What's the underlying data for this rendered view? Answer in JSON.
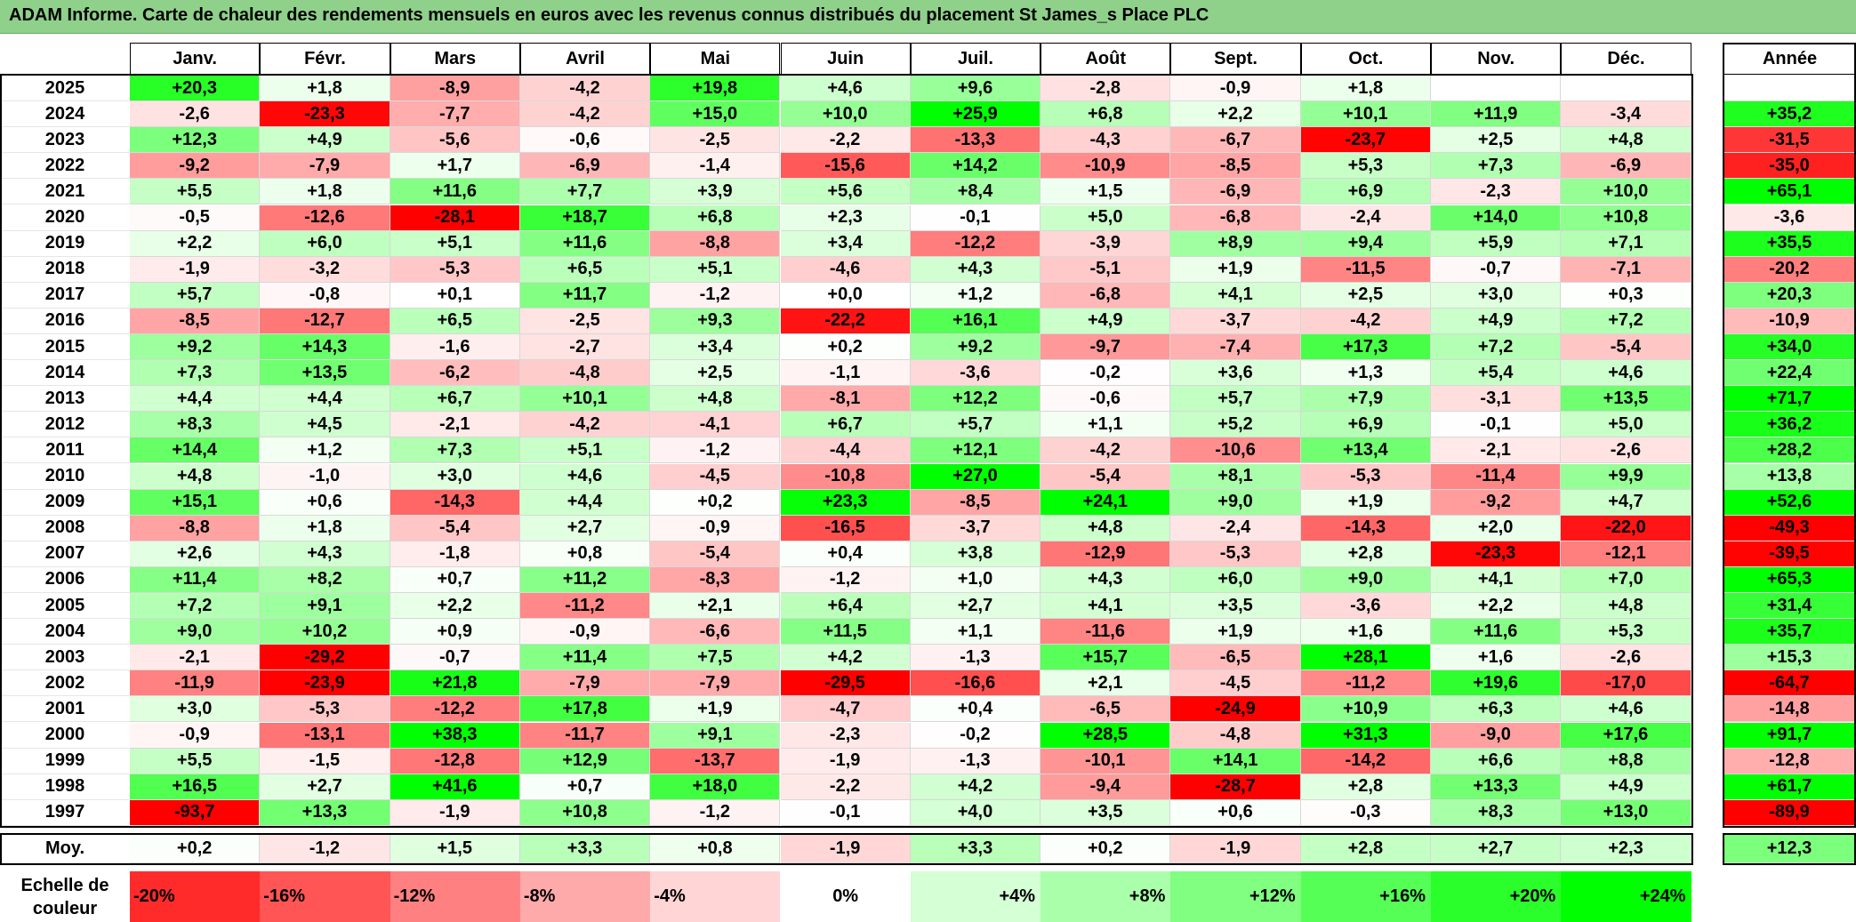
{
  "title": "ADAM Informe. Carte de chaleur des rendements mensuels en euros avec les revenus connus distribués du placement St James_s Place PLC",
  "chart_data": {
    "type": "heatmap",
    "columns": [
      "Janv.",
      "Févr.",
      "Mars",
      "Avril",
      "Mai",
      "Juin",
      "Juil.",
      "Août",
      "Sept.",
      "Oct.",
      "Nov.",
      "Déc."
    ],
    "year_column_label": "Année",
    "rows": [
      {
        "year": "2025",
        "months": [
          "+20,3",
          "+1,8",
          "-8,9",
          "-4,2",
          "+19,8",
          "+4,6",
          "+9,6",
          "-2,8",
          "-0,9",
          "+1,8",
          "",
          ""
        ],
        "annual": ""
      },
      {
        "year": "2024",
        "months": [
          "-2,6",
          "-23,3",
          "-7,7",
          "-4,2",
          "+15,0",
          "+10,0",
          "+25,9",
          "+6,8",
          "+2,2",
          "+10,1",
          "+11,9",
          "-3,4"
        ],
        "annual": "+35,2"
      },
      {
        "year": "2023",
        "months": [
          "+12,3",
          "+4,9",
          "-5,6",
          "-0,6",
          "-2,5",
          "-2,2",
          "-13,3",
          "-4,3",
          "-6,7",
          "-23,7",
          "+2,5",
          "+4,8"
        ],
        "annual": "-31,5"
      },
      {
        "year": "2022",
        "months": [
          "-9,2",
          "-7,9",
          "+1,7",
          "-6,9",
          "-1,4",
          "-15,6",
          "+14,2",
          "-10,9",
          "-8,5",
          "+5,3",
          "+7,3",
          "-6,9"
        ],
        "annual": "-35,0"
      },
      {
        "year": "2021",
        "months": [
          "+5,5",
          "+1,8",
          "+11,6",
          "+7,7",
          "+3,9",
          "+5,6",
          "+8,4",
          "+1,5",
          "-6,9",
          "+6,9",
          "-2,3",
          "+10,0"
        ],
        "annual": "+65,1"
      },
      {
        "year": "2020",
        "months": [
          "-0,5",
          "-12,6",
          "-28,1",
          "+18,7",
          "+6,8",
          "+2,3",
          "-0,1",
          "+5,0",
          "-6,8",
          "-2,4",
          "+14,0",
          "+10,8"
        ],
        "annual": "-3,6"
      },
      {
        "year": "2019",
        "months": [
          "+2,2",
          "+6,0",
          "+5,1",
          "+11,6",
          "-8,8",
          "+3,4",
          "-12,2",
          "-3,9",
          "+8,9",
          "+9,4",
          "+5,9",
          "+7,1"
        ],
        "annual": "+35,5"
      },
      {
        "year": "2018",
        "months": [
          "-1,9",
          "-3,2",
          "-5,3",
          "+6,5",
          "+5,1",
          "-4,6",
          "+4,3",
          "-5,1",
          "+1,9",
          "-11,5",
          "-0,7",
          "-7,1"
        ],
        "annual": "-20,2"
      },
      {
        "year": "2017",
        "months": [
          "+5,7",
          "-0,8",
          "+0,1",
          "+11,7",
          "-1,2",
          "+0,0",
          "+1,2",
          "-6,8",
          "+4,1",
          "+2,5",
          "+3,0",
          "+0,3"
        ],
        "annual": "+20,3"
      },
      {
        "year": "2016",
        "months": [
          "-8,5",
          "-12,7",
          "+6,5",
          "-2,5",
          "+9,3",
          "-22,2",
          "+16,1",
          "+4,9",
          "-3,7",
          "-4,2",
          "+4,9",
          "+7,2"
        ],
        "annual": "-10,9"
      },
      {
        "year": "2015",
        "months": [
          "+9,2",
          "+14,3",
          "-1,6",
          "-2,7",
          "+3,4",
          "+0,2",
          "+9,2",
          "-9,7",
          "-7,4",
          "+17,3",
          "+7,2",
          "-5,4"
        ],
        "annual": "+34,0"
      },
      {
        "year": "2014",
        "months": [
          "+7,3",
          "+13,5",
          "-6,2",
          "-4,8",
          "+2,5",
          "-1,1",
          "-3,6",
          "-0,2",
          "+3,6",
          "+1,3",
          "+5,4",
          "+4,6"
        ],
        "annual": "+22,4"
      },
      {
        "year": "2013",
        "months": [
          "+4,4",
          "+4,4",
          "+6,7",
          "+10,1",
          "+4,8",
          "-8,1",
          "+12,2",
          "-0,6",
          "+5,7",
          "+7,9",
          "-3,1",
          "+13,5"
        ],
        "annual": "+71,7"
      },
      {
        "year": "2012",
        "months": [
          "+8,3",
          "+4,5",
          "-2,1",
          "-4,2",
          "-4,1",
          "+6,7",
          "+5,7",
          "+1,1",
          "+5,2",
          "+6,9",
          "-0,1",
          "+5,0"
        ],
        "annual": "+36,2"
      },
      {
        "year": "2011",
        "months": [
          "+14,4",
          "+1,2",
          "+7,3",
          "+5,1",
          "-1,2",
          "-4,4",
          "+12,1",
          "-4,2",
          "-10,6",
          "+13,4",
          "-2,1",
          "-2,6"
        ],
        "annual": "+28,2"
      },
      {
        "year": "2010",
        "months": [
          "+4,8",
          "-1,0",
          "+3,0",
          "+4,6",
          "-4,5",
          "-10,8",
          "+27,0",
          "-5,4",
          "+8,1",
          "-5,3",
          "-11,4",
          "+9,9"
        ],
        "annual": "+13,8"
      },
      {
        "year": "2009",
        "months": [
          "+15,1",
          "+0,6",
          "-14,3",
          "+4,4",
          "+0,2",
          "+23,3",
          "-8,5",
          "+24,1",
          "+9,0",
          "+1,9",
          "-9,2",
          "+4,7"
        ],
        "annual": "+52,6"
      },
      {
        "year": "2008",
        "months": [
          "-8,8",
          "+1,8",
          "-5,4",
          "+2,7",
          "-0,9",
          "-16,5",
          "-3,7",
          "+4,8",
          "-2,4",
          "-14,3",
          "+2,0",
          "-22,0"
        ],
        "annual": "-49,3"
      },
      {
        "year": "2007",
        "months": [
          "+2,6",
          "+4,3",
          "-1,8",
          "+0,8",
          "-5,4",
          "+0,4",
          "+3,8",
          "-12,9",
          "-5,3",
          "+2,8",
          "-23,3",
          "-12,1"
        ],
        "annual": "-39,5"
      },
      {
        "year": "2006",
        "months": [
          "+11,4",
          "+8,2",
          "+0,7",
          "+11,2",
          "-8,3",
          "-1,2",
          "+1,0",
          "+4,3",
          "+6,0",
          "+9,0",
          "+4,1",
          "+7,0"
        ],
        "annual": "+65,3"
      },
      {
        "year": "2005",
        "months": [
          "+7,2",
          "+9,1",
          "+2,2",
          "-11,2",
          "+2,1",
          "+6,4",
          "+2,7",
          "+4,1",
          "+3,5",
          "-3,6",
          "+2,2",
          "+4,8"
        ],
        "annual": "+31,4"
      },
      {
        "year": "2004",
        "months": [
          "+9,0",
          "+10,2",
          "+0,9",
          "-0,9",
          "-6,6",
          "+11,5",
          "+1,1",
          "-11,6",
          "+1,9",
          "+1,6",
          "+11,6",
          "+5,3"
        ],
        "annual": "+35,7"
      },
      {
        "year": "2003",
        "months": [
          "-2,1",
          "-29,2",
          "-0,7",
          "+11,4",
          "+7,5",
          "+4,2",
          "-1,3",
          "+15,7",
          "-6,5",
          "+28,1",
          "+1,6",
          "-2,6"
        ],
        "annual": "+15,3"
      },
      {
        "year": "2002",
        "months": [
          "-11,9",
          "-23,9",
          "+21,8",
          "-7,9",
          "-7,9",
          "-29,5",
          "-16,6",
          "+2,1",
          "-4,5",
          "-11,2",
          "+19,6",
          "-17,0"
        ],
        "annual": "-64,7"
      },
      {
        "year": "2001",
        "months": [
          "+3,0",
          "-5,3",
          "-12,2",
          "+17,8",
          "+1,9",
          "-4,7",
          "+0,4",
          "-6,5",
          "-24,9",
          "+10,9",
          "+6,3",
          "+4,6"
        ],
        "annual": "-14,8"
      },
      {
        "year": "2000",
        "months": [
          "-0,9",
          "-13,1",
          "+38,3",
          "-11,7",
          "+9,1",
          "-2,3",
          "-0,2",
          "+28,5",
          "-4,8",
          "+31,3",
          "-9,0",
          "+17,6"
        ],
        "annual": "+91,7"
      },
      {
        "year": "1999",
        "months": [
          "+5,5",
          "-1,5",
          "-12,8",
          "+12,9",
          "-13,7",
          "-1,9",
          "-1,3",
          "-10,1",
          "+14,1",
          "-14,2",
          "+6,6",
          "+8,8"
        ],
        "annual": "-12,8"
      },
      {
        "year": "1998",
        "months": [
          "+16,5",
          "+2,7",
          "+41,6",
          "+0,7",
          "+18,0",
          "-2,2",
          "+4,2",
          "-9,4",
          "-28,7",
          "+2,8",
          "+13,3",
          "+4,9"
        ],
        "annual": "+61,7"
      },
      {
        "year": "1997",
        "months": [
          "-93,7",
          "+13,3",
          "-1,9",
          "+10,8",
          "-1,2",
          "-0,1",
          "+4,0",
          "+3,5",
          "+0,6",
          "-0,3",
          "+8,3",
          "+13,0"
        ],
        "annual": "-89,9"
      }
    ],
    "average": {
      "label": "Moy.",
      "months": [
        "+0,2",
        "-1,2",
        "+1,5",
        "+3,3",
        "+0,8",
        "-1,9",
        "+3,3",
        "+0,2",
        "-1,9",
        "+2,8",
        "+2,7",
        "+2,3"
      ],
      "annual": "+12,3"
    },
    "scale": {
      "label_line1": "Echelle de",
      "label_line2": "couleur",
      "steps": [
        "-20%",
        "-16%",
        "-12%",
        "-8%",
        "-4%",
        "0%",
        "+4%",
        "+8%",
        "+12%",
        "+16%",
        "+20%",
        "+24%"
      ]
    },
    "colors": {
      "negative_max": "#ff0000",
      "neutral": "#ffffff",
      "positive_max": "#00ff00",
      "title_bg": "#8fd18a"
    }
  }
}
